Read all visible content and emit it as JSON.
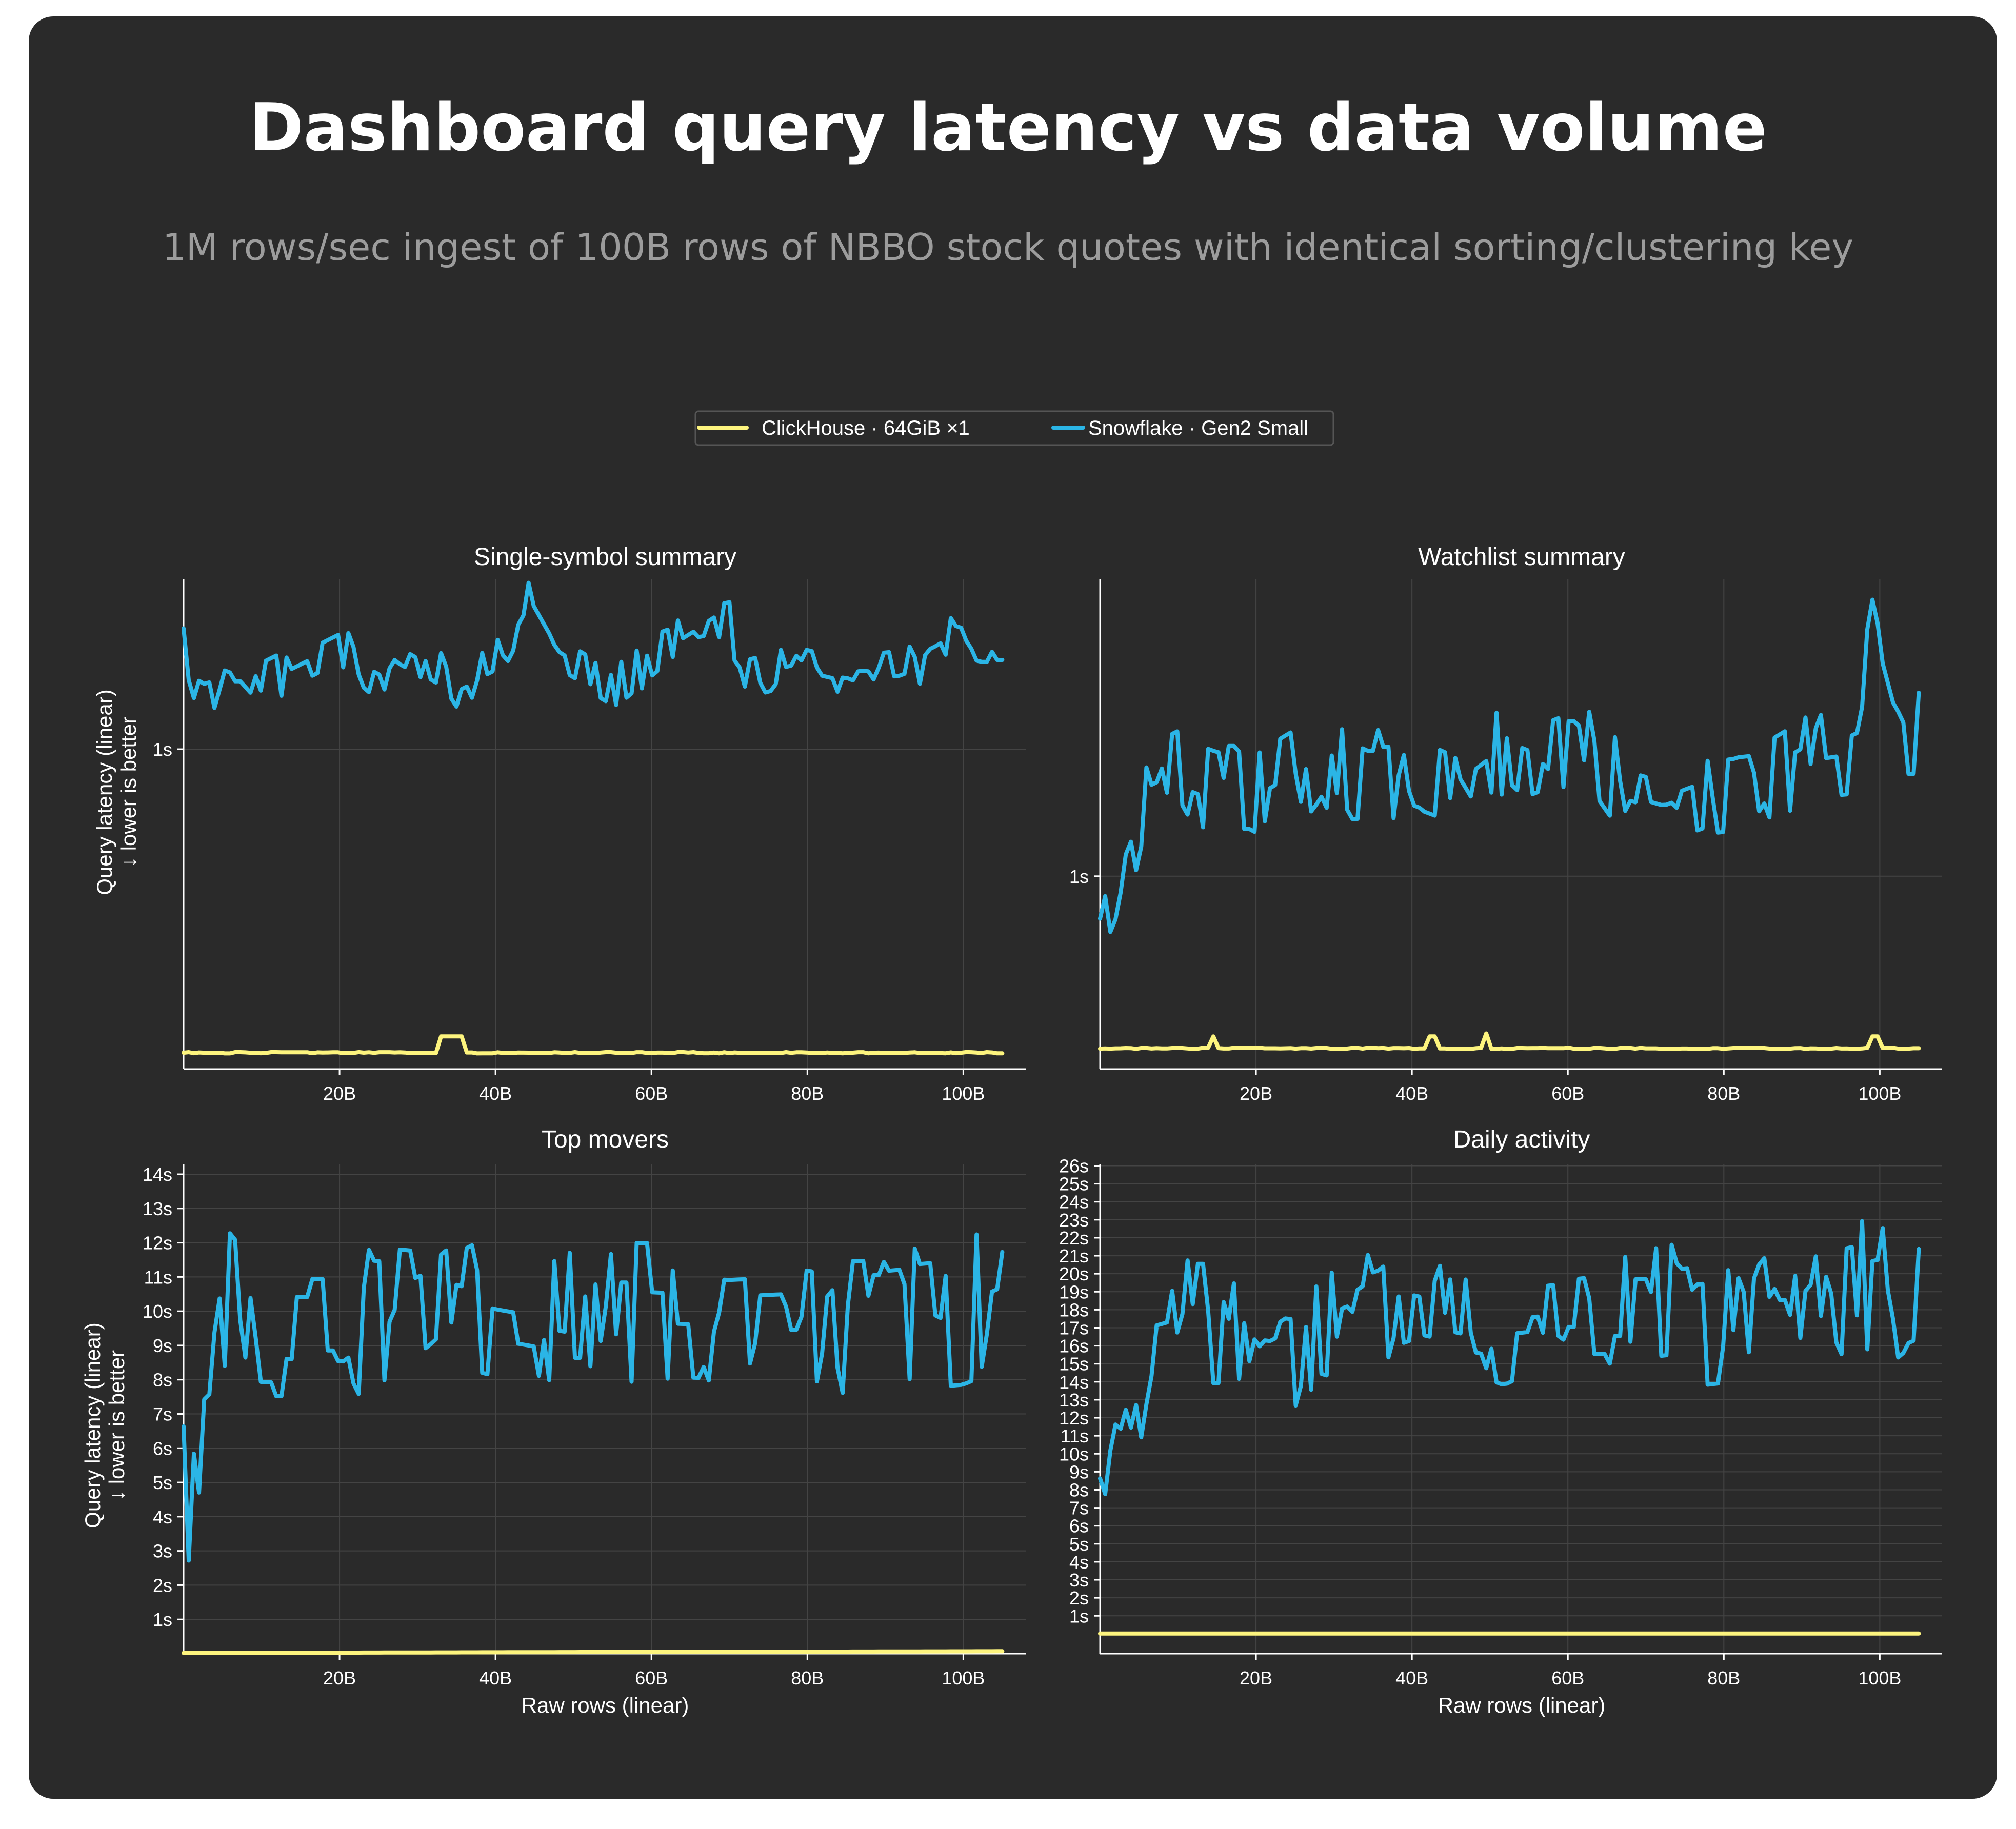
{
  "title": "Dashboard query latency vs data volume",
  "subtitle": "1M rows/sec ingest of 100B rows of NBBO stock quotes with identical sorting/clustering key",
  "legend": [
    {
      "name": "ClickHouse · 64GiB ×1",
      "color": "#fdf47e"
    },
    {
      "name": "Snowflake · Gen2 Small",
      "color": "#2bb5e6"
    }
  ],
  "x_axis": {
    "label": "Raw rows (linear)",
    "range": [
      0,
      108
    ],
    "tick_values": [
      20,
      40,
      60,
      80,
      100
    ],
    "tick_labels": [
      "20B",
      "40B",
      "60B",
      "80B",
      "100B"
    ]
  },
  "y_axis": {
    "label": "Query latency (linear)",
    "label2": "↓ lower is better"
  },
  "chart_data": [
    {
      "type": "line",
      "title": "Single-symbol summary",
      "xlabel": "Raw rows (linear)",
      "ylabel": "Query latency (linear) ↓ lower is better",
      "xlim": [
        0,
        108
      ],
      "ylim": [
        0.02,
        1.52
      ],
      "yticks": [
        1
      ],
      "ytick_labels": [
        "1s"
      ],
      "grid": true,
      "series": [
        {
          "name": "ClickHouse · 64GiB ×1",
          "color": "#fdf47e",
          "seed": 1,
          "n": 160,
          "points": [
            [
              0,
              0.07
            ],
            [
              105,
              0.07
            ]
          ],
          "noise": 0.002,
          "spikes": [
            [
              33.5,
              0.12
            ],
            [
              35.5,
              0.12
            ]
          ]
        },
        {
          "name": "Snowflake · Gen2 Small",
          "color": "#2bb5e6",
          "seed": 2,
          "n": 160,
          "points": [
            [
              0,
              1.37
            ],
            [
              1,
              1.2
            ],
            [
              3,
              1.2
            ],
            [
              4,
              1.12
            ],
            [
              7,
              1.28
            ],
            [
              10,
              1.2
            ],
            [
              15,
              1.26
            ],
            [
              20,
              1.32
            ],
            [
              25,
              1.22
            ],
            [
              28,
              1.3
            ],
            [
              35,
              1.2
            ],
            [
              40,
              1.26
            ],
            [
              44,
              1.45
            ],
            [
              48,
              1.28
            ],
            [
              55,
              1.18
            ],
            [
              62,
              1.32
            ],
            [
              66,
              1.38
            ],
            [
              70,
              1.4
            ],
            [
              72,
              1.22
            ],
            [
              78,
              1.26
            ],
            [
              85,
              1.22
            ],
            [
              92,
              1.24
            ],
            [
              97,
              1.3
            ],
            [
              99,
              1.38
            ],
            [
              101,
              1.3
            ],
            [
              105,
              1.3
            ]
          ],
          "noise": 0.07
        }
      ]
    },
    {
      "type": "line",
      "title": "Watchlist summary",
      "xlabel": "Raw rows (linear)",
      "ylabel": "",
      "xlim": [
        0,
        108
      ],
      "ylim": [
        0.35,
        2.0
      ],
      "yticks": [
        1
      ],
      "ytick_labels": [
        "1s"
      ],
      "grid": true,
      "series": [
        {
          "name": "ClickHouse · 64GiB ×1",
          "color": "#fdf47e",
          "seed": 3,
          "n": 160,
          "points": [
            [
              0,
              0.42
            ],
            [
              105,
              0.42
            ]
          ],
          "noise": 0.002,
          "spikes": [
            [
              14.5,
              0.46
            ],
            [
              42.5,
              0.46
            ],
            [
              49.5,
              0.47
            ],
            [
              99.5,
              0.46
            ],
            [
              105.5,
              0.44
            ]
          ]
        },
        {
          "name": "Snowflake · Gen2 Small",
          "color": "#2bb5e6",
          "seed": 4,
          "n": 160,
          "points": [
            [
              0,
              1.0
            ],
            [
              1,
              0.85
            ],
            [
              3,
              0.98
            ],
            [
              5,
              1.1
            ],
            [
              6,
              1.3
            ],
            [
              10,
              1.35
            ],
            [
              15,
              1.3
            ],
            [
              20,
              1.3
            ],
            [
              25,
              1.38
            ],
            [
              30,
              1.35
            ],
            [
              40,
              1.35
            ],
            [
              45,
              1.3
            ],
            [
              50,
              1.4
            ],
            [
              55,
              1.35
            ],
            [
              60,
              1.4
            ],
            [
              64,
              1.4
            ],
            [
              68,
              1.25
            ],
            [
              72,
              1.22
            ],
            [
              78,
              1.28
            ],
            [
              85,
              1.3
            ],
            [
              90,
              1.38
            ],
            [
              95,
              1.4
            ],
            [
              97,
              1.45
            ],
            [
              99,
              1.8
            ],
            [
              102,
              1.5
            ],
            [
              105,
              1.5
            ]
          ],
          "noise": 0.16
        }
      ]
    },
    {
      "type": "line",
      "title": "Top movers",
      "xlabel": "Raw rows (linear)",
      "ylabel": "Query latency (linear) ↓ lower is better",
      "xlim": [
        0,
        108
      ],
      "ylim": [
        0,
        14.3
      ],
      "yticks": [
        1,
        2,
        3,
        4,
        5,
        6,
        7,
        8,
        9,
        10,
        11,
        12,
        13,
        14
      ],
      "ytick_labels": [
        "1s",
        "2s",
        "3s",
        "4s",
        "5s",
        "6s",
        "7s",
        "8s",
        "9s",
        "10s",
        "11s",
        "12s",
        "13s",
        "14s"
      ],
      "grid": true,
      "series": [
        {
          "name": "ClickHouse · 64GiB ×1",
          "color": "#fdf47e",
          "seed": 5,
          "n": 160,
          "points": [
            [
              0,
              0.02
            ],
            [
              105,
              0.07
            ]
          ],
          "noise": 0.0
        },
        {
          "name": "Snowflake · Gen2 Small",
          "color": "#2bb5e6",
          "seed": 6,
          "n": 160,
          "points": [
            [
              0,
              5.6
            ],
            [
              0.5,
              4.5
            ],
            [
              1,
              5.7
            ],
            [
              3,
              8.2
            ],
            [
              4,
              7.2
            ],
            [
              6,
              10.5
            ],
            [
              10,
              9.8
            ],
            [
              20,
              9.8
            ],
            [
              30,
              9.6
            ],
            [
              35,
              10.5
            ],
            [
              40,
              10.2
            ],
            [
              50,
              9.8
            ],
            [
              60,
              9.8
            ],
            [
              70,
              9.7
            ],
            [
              80,
              9.8
            ],
            [
              90,
              9.8
            ],
            [
              100,
              10
            ],
            [
              105,
              10.5
            ]
          ],
          "noise": 2.3
        }
      ]
    },
    {
      "type": "line",
      "title": "Daily activity",
      "xlabel": "Raw rows (linear)",
      "ylabel": "",
      "xlim": [
        0,
        108
      ],
      "ylim": [
        -1.1,
        26.1
      ],
      "yticks": [
        1,
        2,
        3,
        4,
        5,
        6,
        7,
        8,
        9,
        10,
        11,
        12,
        13,
        14,
        15,
        16,
        17,
        18,
        19,
        20,
        21,
        22,
        23,
        24,
        25,
        26
      ],
      "ytick_labels": [
        "1s",
        "2s",
        "3s",
        "4s",
        "5s",
        "6s",
        "7s",
        "8s",
        "9s",
        "10s",
        "11s",
        "12s",
        "13s",
        "14s",
        "15s",
        "16s",
        "17s",
        "18s",
        "19s",
        "20s",
        "21s",
        "22s",
        "23s",
        "24s",
        "25s",
        "26s"
      ],
      "grid": true,
      "series": [
        {
          "name": "ClickHouse · 64GiB ×1",
          "color": "#fdf47e",
          "seed": 7,
          "n": 160,
          "points": [
            [
              0,
              0.02
            ],
            [
              105,
              0.02
            ]
          ],
          "noise": 0.0
        },
        {
          "name": "Snowflake · Gen2 Small",
          "color": "#2bb5e6",
          "seed": 8,
          "n": 160,
          "points": [
            [
              0,
              9.5
            ],
            [
              0.5,
              7.4
            ],
            [
              1,
              9.6
            ],
            [
              2,
              9.6
            ],
            [
              3,
              13.8
            ],
            [
              4,
              12.3
            ],
            [
              6,
              16.5
            ],
            [
              10,
              17
            ],
            [
              20,
              17
            ],
            [
              30,
              16.5
            ],
            [
              40,
              18
            ],
            [
              50,
              17
            ],
            [
              60,
              17.5
            ],
            [
              70,
              17.5
            ],
            [
              80,
              18
            ],
            [
              90,
              18
            ],
            [
              100,
              19
            ],
            [
              105,
              20
            ]
          ],
          "noise": 4.2
        }
      ]
    }
  ]
}
